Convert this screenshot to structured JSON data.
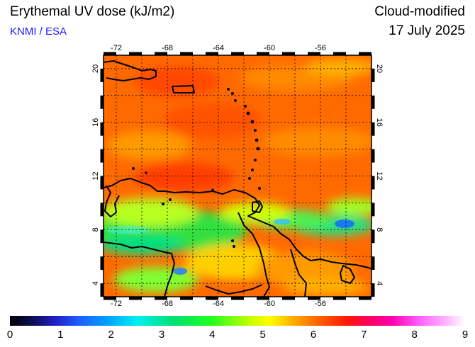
{
  "header": {
    "title": "Erythemal UV dose (kJ/m2)",
    "credit": "KNMI / ESA",
    "mode": "Cloud-modified",
    "date": "17 July 2025"
  },
  "map": {
    "lon_ticks": [
      "-72",
      "-68",
      "-64",
      "-60",
      "-56"
    ],
    "lat_ticks": [
      "20",
      "16",
      "12",
      "8",
      "4"
    ],
    "lon_range": [
      -73,
      -52
    ],
    "lat_range": [
      3,
      21
    ]
  },
  "colorbar": {
    "labels": [
      "0",
      "1",
      "2",
      "3",
      "4",
      "5",
      "6",
      "7",
      "8",
      "9"
    ]
  }
}
